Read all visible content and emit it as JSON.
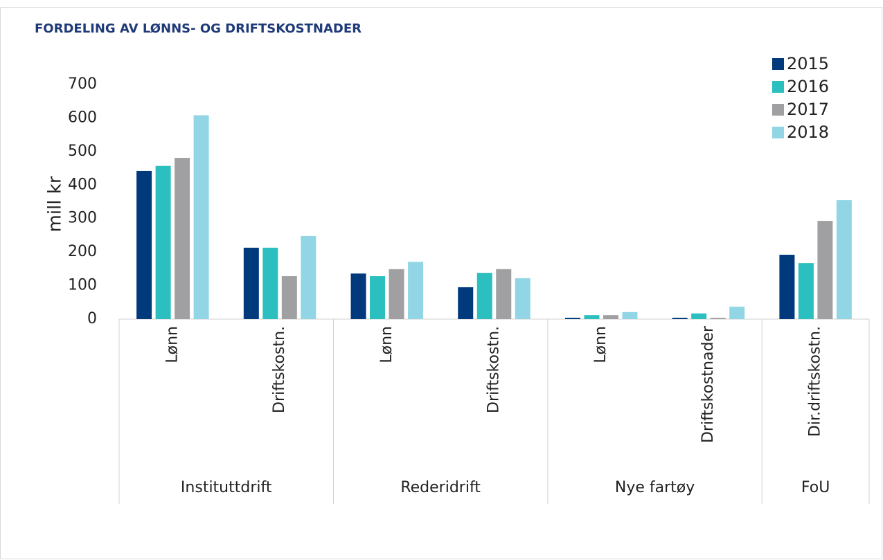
{
  "chart_data": {
    "type": "bar",
    "title": "FORDELING AV LØNNS- OG DRIFTSKOSTNADER",
    "y_label": "mill kr",
    "groups": [
      {
        "name": "Instituttdrift",
        "categories": [
          "Lønn",
          "Driftskostn."
        ]
      },
      {
        "name": "Rederidrift",
        "categories": [
          "Lønn",
          "Driftskostn."
        ]
      },
      {
        "name": "Nye fartøy",
        "categories": [
          "Lønn",
          "Driftskostnader"
        ]
      },
      {
        "name": "FoU",
        "categories": [
          "Dir.driftskostn."
        ]
      }
    ],
    "series": [
      {
        "name": "2015",
        "color": "#003a7d",
        "values": [
          442,
          213,
          136,
          95,
          4,
          4,
          192
        ]
      },
      {
        "name": "2016",
        "color": "#2bbfbf",
        "values": [
          457,
          213,
          128,
          138,
          12,
          17,
          167
        ]
      },
      {
        "name": "2017",
        "color": "#a0a0a2",
        "values": [
          481,
          128,
          149,
          149,
          12,
          4,
          293
        ]
      },
      {
        "name": "2018",
        "color": "#92d6e6",
        "values": [
          608,
          248,
          171,
          122,
          21,
          37,
          355
        ]
      }
    ],
    "ylim": [
      0,
      700
    ],
    "yticks": [
      0,
      100,
      200,
      300,
      400,
      500,
      600,
      700
    ],
    "grid": false,
    "legend": "top-right"
  }
}
